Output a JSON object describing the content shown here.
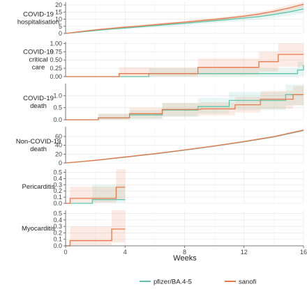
{
  "chart_data": {
    "type": "line",
    "xlabel": "Weeks",
    "x_ticks": [
      "0",
      "4",
      "8",
      "12",
      "16"
    ],
    "xlim": [
      0,
      16
    ],
    "grid": true,
    "legend_position": "bottom",
    "series_names": [
      "pfizer/BA.4-5",
      "sanofi"
    ],
    "colors": {
      "pfizer/BA.4-5": "#5fc4ab",
      "sanofi": "#e8784a"
    },
    "panels": [
      {
        "label_lines": [
          "COVID-19",
          "hospitalisation"
        ],
        "ylim": [
          0,
          22
        ],
        "y_ticks": [
          "0",
          "5",
          "10",
          "15",
          "20"
        ],
        "y_tick_values": [
          0,
          5,
          10,
          15,
          20
        ],
        "series": [
          {
            "name": "pfizer/BA.4-5",
            "step": false,
            "x": [
              0,
              1,
              2,
              3,
              4,
              5,
              6,
              7,
              8,
              9,
              10,
              11,
              12,
              13,
              14,
              15,
              16
            ],
            "y": [
              0,
              1.0,
              2.0,
              3.0,
              3.8,
              4.6,
              5.5,
              6.3,
              7.1,
              8.0,
              8.9,
              9.8,
              10.8,
              11.8,
              13.3,
              15.0,
              17.2
            ],
            "lower": [
              0,
              0.6,
              1.4,
              2.2,
              2.9,
              3.6,
              4.3,
              5.0,
              5.7,
              6.5,
              7.3,
              8.1,
              8.9,
              9.8,
              11.1,
              12.5,
              14.2
            ],
            "upper": [
              0,
              1.5,
              2.7,
              3.8,
              4.7,
              5.6,
              6.6,
              7.6,
              8.5,
              9.5,
              10.5,
              11.5,
              12.6,
              13.8,
              15.5,
              17.5,
              20.0
            ]
          },
          {
            "name": "sanofi",
            "step": false,
            "x": [
              0,
              1,
              2,
              3,
              4,
              5,
              6,
              7,
              8,
              9,
              10,
              11,
              12,
              13,
              14,
              15,
              16
            ],
            "y": [
              0,
              1.3,
              2.5,
              3.5,
              4.4,
              5.2,
              6.1,
              7.0,
              7.9,
              8.9,
              9.8,
              10.9,
              12.1,
              13.6,
              15.5,
              17.8,
              20.5
            ],
            "lower": [
              0,
              0.8,
              1.9,
              2.8,
              3.6,
              4.4,
              5.2,
              6.0,
              6.9,
              7.8,
              8.7,
              9.7,
              10.8,
              12.1,
              13.8,
              15.8,
              18.2
            ],
            "upper": [
              0,
              1.8,
              3.1,
              4.2,
              5.2,
              6.1,
              7.0,
              8.0,
              8.9,
              10.0,
              11.0,
              12.1,
              13.4,
              15.1,
              17.2,
              19.8,
              22.0
            ]
          }
        ]
      },
      {
        "label_lines": [
          "COVID-19",
          "critical",
          "care"
        ],
        "ylim": [
          0,
          1.05
        ],
        "y_ticks": [
          "0.00",
          "0.25",
          "0.50",
          "0.75",
          "1.00"
        ],
        "y_tick_values": [
          0,
          0.25,
          0.5,
          0.75,
          1.0
        ],
        "series": [
          {
            "name": "pfizer/BA.4-5",
            "step": true,
            "x": [
              0,
              5.6,
              15.6,
              16
            ],
            "y": [
              0,
              0.09,
              0.2,
              0.35
            ],
            "lower": [
              0,
              0,
              0.02,
              0.1
            ],
            "upper": [
              0,
              0.25,
              0.45,
              0.75
            ]
          },
          {
            "name": "sanofi",
            "step": true,
            "x": [
              0,
              3.6,
              8.9,
              13,
              14.3,
              16
            ],
            "y": [
              0,
              0.09,
              0.28,
              0.45,
              0.67,
              0.67
            ],
            "lower": [
              0,
              0,
              0.05,
              0.15,
              0.3,
              0.3
            ],
            "upper": [
              0,
              0.28,
              0.55,
              0.75,
              1.0,
              1.0
            ]
          }
        ]
      },
      {
        "label_lines": [
          "COVID-19",
          "death"
        ],
        "ylim": [
          0,
          1.5
        ],
        "y_ticks": [
          "0.0",
          "0.5",
          "1.0"
        ],
        "y_tick_values": [
          0,
          0.5,
          1.0
        ],
        "series": [
          {
            "name": "pfizer/BA.4-5",
            "step": true,
            "x": [
              0,
              2.2,
              4.3,
              6.5,
              8.9,
              11,
              14.8,
              16
            ],
            "y": [
              0,
              0.08,
              0.2,
              0.4,
              0.55,
              0.8,
              1.05,
              1.05
            ],
            "lower": [
              0,
              0,
              0.02,
              0.12,
              0.25,
              0.4,
              0.6,
              0.6
            ],
            "upper": [
              0,
              0.25,
              0.4,
              0.7,
              0.9,
              1.15,
              1.45,
              1.45
            ]
          },
          {
            "name": "sanofi",
            "step": true,
            "x": [
              0,
              2.2,
              4.3,
              6.5,
              9.1,
              11.4,
              13.1,
              15.3,
              16
            ],
            "y": [
              0,
              0.08,
              0.25,
              0.43,
              0.45,
              0.62,
              0.85,
              1.05,
              1.05
            ],
            "lower": [
              0,
              0,
              0.05,
              0.15,
              0.18,
              0.3,
              0.45,
              0.6,
              0.6
            ],
            "upper": [
              0,
              0.25,
              0.5,
              0.7,
              0.72,
              0.95,
              1.2,
              1.4,
              1.4
            ]
          }
        ]
      },
      {
        "label_lines": [
          "Non-COVID-19",
          "death"
        ],
        "ylim": [
          0,
          82
        ],
        "y_ticks": [
          "0",
          "20",
          "40",
          "60"
        ],
        "y_tick_values": [
          0,
          20,
          40,
          60
        ],
        "series": [
          {
            "name": "pfizer/BA.4-5",
            "step": false,
            "x": [
              0,
              2,
              4,
              6,
              8,
              10,
              12,
              14,
              16
            ],
            "y": [
              0,
              5.8,
              13,
              20.5,
              29,
              38,
              48,
              59,
              73.5
            ],
            "lower": [
              0,
              5.0,
              12,
              19.3,
              27.5,
              36.5,
              46.3,
              57,
              71.5
            ],
            "upper": [
              0,
              6.6,
              14,
              21.7,
              30.5,
              39.5,
              49.7,
              61,
              75.5
            ]
          },
          {
            "name": "sanofi",
            "step": false,
            "x": [
              0,
              2,
              4,
              6,
              8,
              10,
              12,
              14,
              16
            ],
            "y": [
              0,
              6,
              13.5,
              21,
              29.5,
              38.5,
              48.5,
              59.5,
              74.5
            ],
            "lower": [
              0,
              5.2,
              12.4,
              19.8,
              28,
              37,
              46.8,
              57.6,
              72.4
            ],
            "upper": [
              0,
              6.8,
              14.6,
              22.2,
              31,
              40,
              50.2,
              61.4,
              76.6
            ]
          }
        ]
      },
      {
        "label_lines": [
          "Pericarditis"
        ],
        "ylim": [
          0,
          0.55
        ],
        "y_ticks": [
          "0.0",
          "0.1",
          "0.2",
          "0.3",
          "0.4",
          "0.5"
        ],
        "y_tick_values": [
          0,
          0.1,
          0.2,
          0.3,
          0.4,
          0.5
        ],
        "series": [
          {
            "name": "pfizer/BA.4-5",
            "step": true,
            "x": [
              0,
              1.8,
              4
            ],
            "y": [
              0,
              0.06,
              0.06
            ],
            "lower": [
              0,
              0.01,
              0.01
            ],
            "upper": [
              0,
              0.3,
              0.3
            ]
          },
          {
            "name": "sanofi",
            "step": true,
            "x": [
              0,
              0.3,
              3.4,
              4
            ],
            "y": [
              0,
              0.08,
              0.26,
              0.26
            ],
            "lower": [
              0,
              0.01,
              0.05,
              0.05
            ],
            "upper": [
              0,
              0.27,
              0.55,
              0.55
            ]
          }
        ]
      },
      {
        "label_lines": [
          "Myocarditis"
        ],
        "ylim": [
          0,
          0.55
        ],
        "y_ticks": [
          "0.0",
          "0.1",
          "0.2",
          "0.3",
          "0.4",
          "0.5"
        ],
        "y_tick_values": [
          0,
          0.1,
          0.2,
          0.3,
          0.4,
          0.5
        ],
        "series": [
          {
            "name": "sanofi",
            "step": true,
            "x": [
              0,
              0.3,
              3.1,
              4
            ],
            "y": [
              0,
              0.08,
              0.26,
              0.26
            ],
            "lower": [
              0,
              0.01,
              0.05,
              0.05
            ],
            "upper": [
              0,
              0.3,
              0.55,
              0.55
            ]
          }
        ]
      }
    ]
  }
}
